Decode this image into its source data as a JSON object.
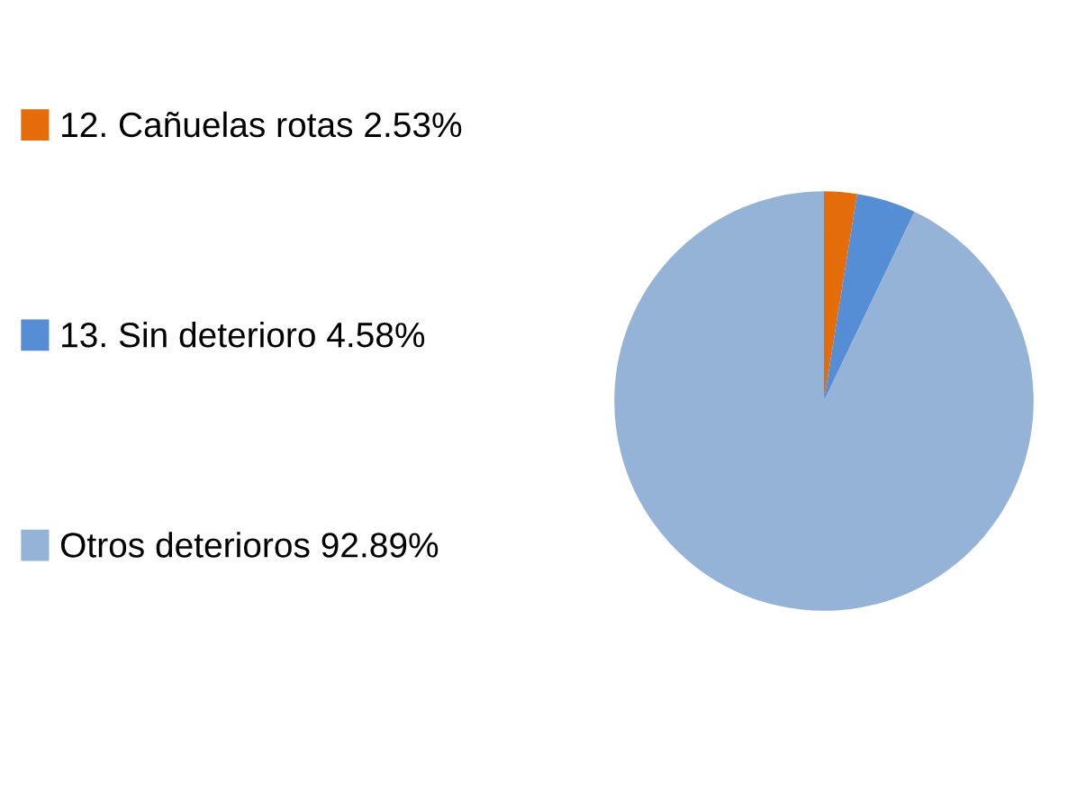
{
  "chart_data": {
    "type": "pie",
    "categories": [
      "12. Cañuelas rotas 2.53%",
      "13. Sin deterioro 4.58%",
      "Otros deterioros 92.89%"
    ],
    "values": [
      2.53,
      4.58,
      92.89
    ],
    "colors": [
      "#e46c0a",
      "#558ed5",
      "#95b3d7"
    ],
    "legend": "left"
  }
}
